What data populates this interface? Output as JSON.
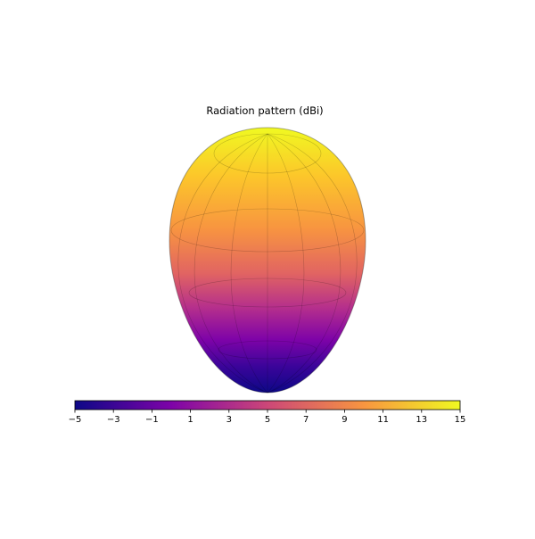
{
  "chart_data": {
    "type": "surface3d",
    "title": "Radiation pattern (dBi)",
    "colormap": "plasma",
    "clim": [
      -5,
      15
    ],
    "cticks": [
      {
        "value": -5,
        "label": "−5"
      },
      {
        "value": -3,
        "label": "−3"
      },
      {
        "value": -1,
        "label": "−1"
      },
      1,
      3,
      5,
      7,
      9,
      11,
      13,
      15
    ]
  }
}
